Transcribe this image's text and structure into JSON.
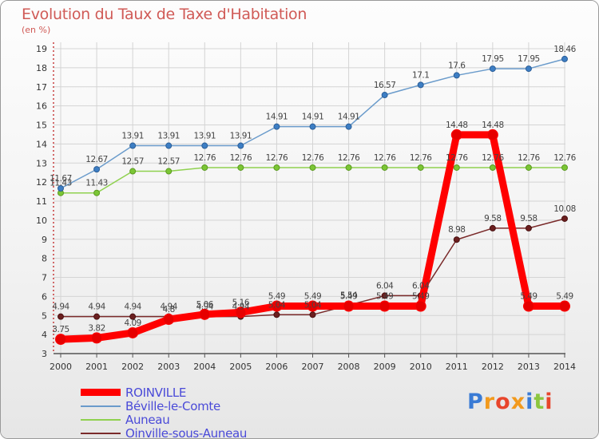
{
  "title": "Evolution du Taux de Taxe d'Habitation",
  "unit": "(en %)",
  "logo": "Proxiti",
  "chart_data": {
    "type": "line",
    "x": [
      "2000",
      "2001",
      "2002",
      "2003",
      "2004",
      "2005",
      "2006",
      "2007",
      "2008",
      "2009",
      "2010",
      "2011",
      "2012",
      "2013",
      "2014"
    ],
    "ylim": [
      3,
      19
    ],
    "yticks": [
      3,
      4,
      5,
      6,
      7,
      8,
      9,
      10,
      11,
      12,
      13,
      14,
      15,
      16,
      17,
      18,
      19
    ],
    "grid": true,
    "legend_position": "bottom-left",
    "series": [
      {
        "name": "ROINVILLE",
        "color": "#ff0000",
        "values": [
          3.75,
          3.82,
          4.09,
          4.8,
          5.06,
          5.16,
          5.49,
          5.49,
          5.49,
          5.49,
          5.49,
          14.48,
          14.48,
          5.49,
          5.49
        ],
        "labels": [
          "3.75",
          "3.82",
          "4.09",
          "4.8",
          "5.06",
          "5.16",
          "5.49",
          "5.49",
          "5.49",
          "5.49",
          "5.49",
          "14.48",
          "14.48",
          "5.49",
          "5.49"
        ]
      },
      {
        "name": "Béville-le-Comte",
        "color": "#6a9bcb",
        "values": [
          11.67,
          12.67,
          13.91,
          13.91,
          13.91,
          13.91,
          14.91,
          14.91,
          14.91,
          16.57,
          17.1,
          17.6,
          17.95,
          17.95,
          18.46
        ],
        "labels": [
          "11.67",
          "12.67",
          "13.91",
          "13.91",
          "13.91",
          "13.91",
          "14.91",
          "14.91",
          "14.91",
          "16.57",
          "17.1",
          "17.6",
          "17.95",
          "17.95",
          "18.46"
        ]
      },
      {
        "name": "Auneau",
        "color": "#8fd14f",
        "values": [
          11.43,
          11.43,
          12.57,
          12.57,
          12.76,
          12.76,
          12.76,
          12.76,
          12.76,
          12.76,
          12.76,
          12.76,
          12.76,
          12.76,
          12.76
        ],
        "labels": [
          "11.43",
          "11.43",
          "12.57",
          "12.57",
          "12.76",
          "12.76",
          "12.76",
          "12.76",
          "12.76",
          "12.76",
          "12.76",
          "12.76",
          "12.76",
          "12.76",
          "12.76"
        ]
      },
      {
        "name": "Oinville-sous-Auneau",
        "color": "#7a2a2a",
        "values": [
          4.94,
          4.94,
          4.94,
          4.94,
          4.94,
          4.94,
          5.04,
          5.04,
          5.54,
          6.04,
          6.04,
          8.98,
          9.58,
          9.58,
          10.08
        ],
        "labels": [
          "4.94",
          "4.94",
          "4.94",
          "4.94",
          "4.94",
          "4.94",
          "5.04",
          "5.04",
          "5.54",
          "6.04",
          "6.04",
          "8.98",
          "9.58",
          "9.58",
          "10.08"
        ]
      }
    ]
  }
}
